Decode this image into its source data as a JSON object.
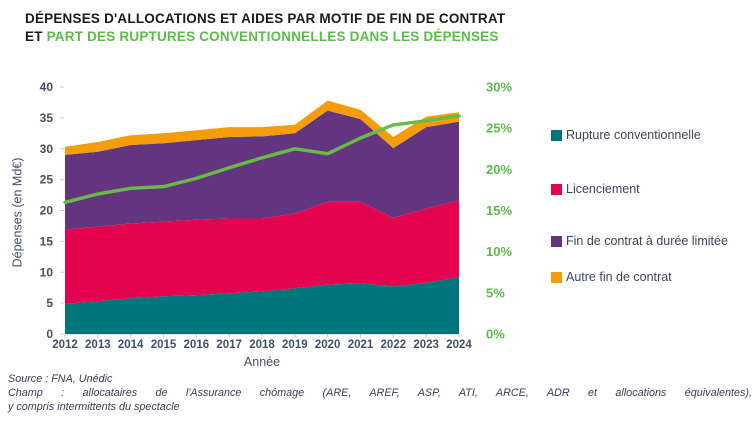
{
  "title": {
    "line1": "DÉPENSES D'ALLOCATIONS ET AIDES PAR MOTIF DE FIN DE CONTRAT",
    "line2_black": "ET ",
    "line2_green": "PART DES RUPTURES CONVENTIONNELLES DANS LES DÉPENSES"
  },
  "chart_data": {
    "type": "area",
    "stacked": true,
    "categories": [
      2012,
      2013,
      2014,
      2015,
      2016,
      2017,
      2018,
      2019,
      2020,
      2021,
      2022,
      2023,
      2024
    ],
    "series": [
      {
        "name": "Rupture conventionnelle",
        "type": "area",
        "axis": "left",
        "color": "#00767C",
        "values": [
          4.9,
          5.3,
          5.8,
          6.1,
          6.3,
          6.6,
          6.9,
          7.4,
          8.0,
          8.2,
          7.7,
          8.3,
          9.2
        ]
      },
      {
        "name": "Licenciement",
        "type": "area",
        "axis": "left",
        "color": "#E4034E",
        "values": [
          12.0,
          12.1,
          12.1,
          12.1,
          12.2,
          12.1,
          11.8,
          12.1,
          13.4,
          13.2,
          11.1,
          12.0,
          12.4
        ]
      },
      {
        "name": "Fin de contrat à durée limitée",
        "type": "area",
        "axis": "left",
        "color": "#64357F",
        "values": [
          12.1,
          12.1,
          12.7,
          12.7,
          12.9,
          13.2,
          13.3,
          13.0,
          14.8,
          13.4,
          11.3,
          13.2,
          12.8
        ]
      },
      {
        "name": "Autre fin de contrat",
        "type": "area",
        "axis": "left",
        "color": "#F59C0B",
        "values": [
          1.3,
          1.6,
          1.6,
          1.6,
          1.6,
          1.6,
          1.5,
          1.4,
          1.6,
          1.5,
          1.8,
          1.7,
          1.5
        ]
      },
      {
        "name": "Part des ruptures conventionnelles dans les dépenses",
        "type": "line",
        "axis": "right",
        "color": "#68BC45",
        "values": [
          16.0,
          17.0,
          17.7,
          17.9,
          18.9,
          20.2,
          21.4,
          22.5,
          21.9,
          23.8,
          25.4,
          25.9,
          26.5
        ]
      }
    ],
    "left_axis": {
      "label": "Dépenses (en Md€)",
      "min": 0,
      "max": 40,
      "step": 5
    },
    "right_axis": {
      "min": 0,
      "max": 30,
      "step": 5,
      "suffix": "%"
    },
    "x_axis": {
      "label": "Année"
    },
    "legend_position": "right",
    "grid": false
  },
  "legend": {
    "items": [
      {
        "label": "Rupture conventionnelle",
        "color": "#00767C"
      },
      {
        "label": "Licenciement",
        "color": "#E4034E"
      },
      {
        "label": "Fin de contrat à durée limitée",
        "color": "#64357F"
      },
      {
        "label": "Autre fin de contrat",
        "color": "#F59C0B"
      }
    ]
  },
  "footer": {
    "source": "Source : FNA, Unédic",
    "champ_line1": "Champ : allocataires de l'Assurance chômage (ARE, AREF, ASP, ATI, ARCE, ADR et allocations équivalentes),",
    "champ_line2": "y compris intermittents du spectacle"
  },
  "colors": {
    "title_green": "#5CBB49",
    "axis_text": "#454F63",
    "right_axis_text": "#5CBB49",
    "axis_line": "#C9CBCF",
    "background": "#FFFFFF"
  }
}
